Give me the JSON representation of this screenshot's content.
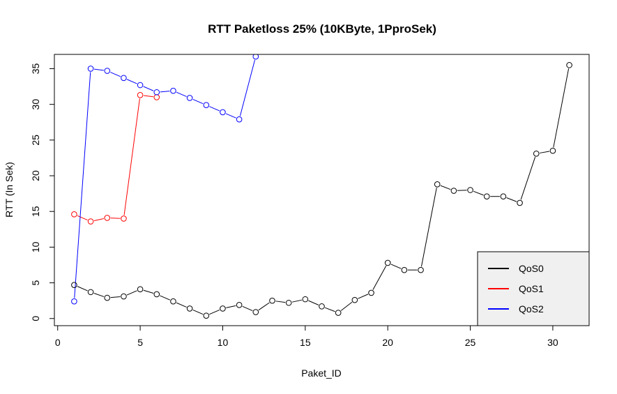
{
  "chart_data": {
    "type": "line",
    "title": "RTT Paketloss 25% (10KByte, 1PproSek)",
    "xlabel": "Paket_ID",
    "ylabel": "RTT (In Sek)",
    "xlim": [
      -0.2,
      32.2
    ],
    "ylim": [
      -1.0,
      37.0
    ],
    "x_ticks": [
      0,
      5,
      10,
      15,
      20,
      25,
      30
    ],
    "y_ticks": [
      0,
      5,
      10,
      15,
      20,
      25,
      30,
      35
    ],
    "grid": false,
    "legend_position": "bottom-right",
    "series": [
      {
        "name": "QoS0",
        "color": "#000000",
        "x": [
          1,
          2,
          3,
          4,
          5,
          6,
          7,
          8,
          9,
          10,
          11,
          12,
          13,
          14,
          15,
          16,
          17,
          18,
          19,
          20,
          21,
          22,
          23,
          24,
          25,
          26,
          27,
          28,
          29,
          30,
          31
        ],
        "y": [
          4.7,
          3.7,
          2.9,
          3.1,
          4.1,
          3.4,
          2.4,
          1.4,
          0.4,
          1.4,
          1.9,
          0.9,
          2.5,
          2.2,
          2.7,
          1.7,
          0.8,
          2.6,
          3.6,
          7.8,
          6.8,
          6.8,
          18.8,
          17.9,
          18.0,
          17.1,
          17.1,
          16.2,
          23.1,
          23.5,
          35.5
        ]
      },
      {
        "name": "QoS1",
        "color": "#ff0000",
        "x": [
          1,
          2,
          3,
          4,
          5,
          6
        ],
        "y": [
          14.6,
          13.6,
          14.1,
          14.0,
          31.3,
          31.0
        ]
      },
      {
        "name": "QoS2",
        "color": "#0000ff",
        "x": [
          1,
          2,
          3,
          4,
          5,
          6,
          7,
          8,
          9,
          10,
          11,
          12
        ],
        "y": [
          2.4,
          35.0,
          34.7,
          33.7,
          32.7,
          31.7,
          31.9,
          30.9,
          29.9,
          28.9,
          27.9,
          36.7
        ]
      }
    ]
  }
}
